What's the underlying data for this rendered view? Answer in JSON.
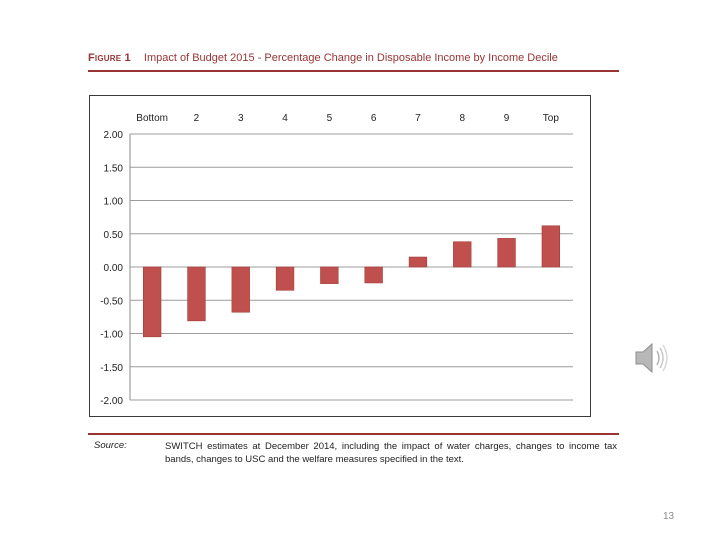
{
  "figure": {
    "label": "Figure 1",
    "title": "Impact of Budget 2015 - Percentage Change in Disposable Income by Income Decile"
  },
  "chart_data": {
    "type": "bar",
    "title": "Impact of Budget 2015 - Percentage Change in Disposable Income by Income Decile",
    "xlabel": "",
    "ylabel": "",
    "categories": [
      "Bottom",
      "2",
      "3",
      "4",
      "5",
      "6",
      "7",
      "8",
      "9",
      "Top"
    ],
    "values": [
      -1.05,
      -0.81,
      -0.68,
      -0.35,
      -0.25,
      -0.24,
      0.15,
      0.38,
      0.43,
      0.62
    ],
    "ylim": [
      -2.0,
      2.0
    ],
    "yticks": [
      "2.00",
      "1.50",
      "1.00",
      "0.50",
      "0.00",
      "-0.50",
      "-1.00",
      "-1.50",
      "-2.00"
    ],
    "x_axis_position": "top",
    "grid": true,
    "bar_color": "#c0504d"
  },
  "source": {
    "label": "Source:",
    "text": "SWITCH estimates at December 2014, including the impact of water charges, changes to income tax bands, changes to USC and the welfare measures specified in the text."
  },
  "speaker": {
    "icon": "speaker-icon"
  },
  "page_number": "13"
}
